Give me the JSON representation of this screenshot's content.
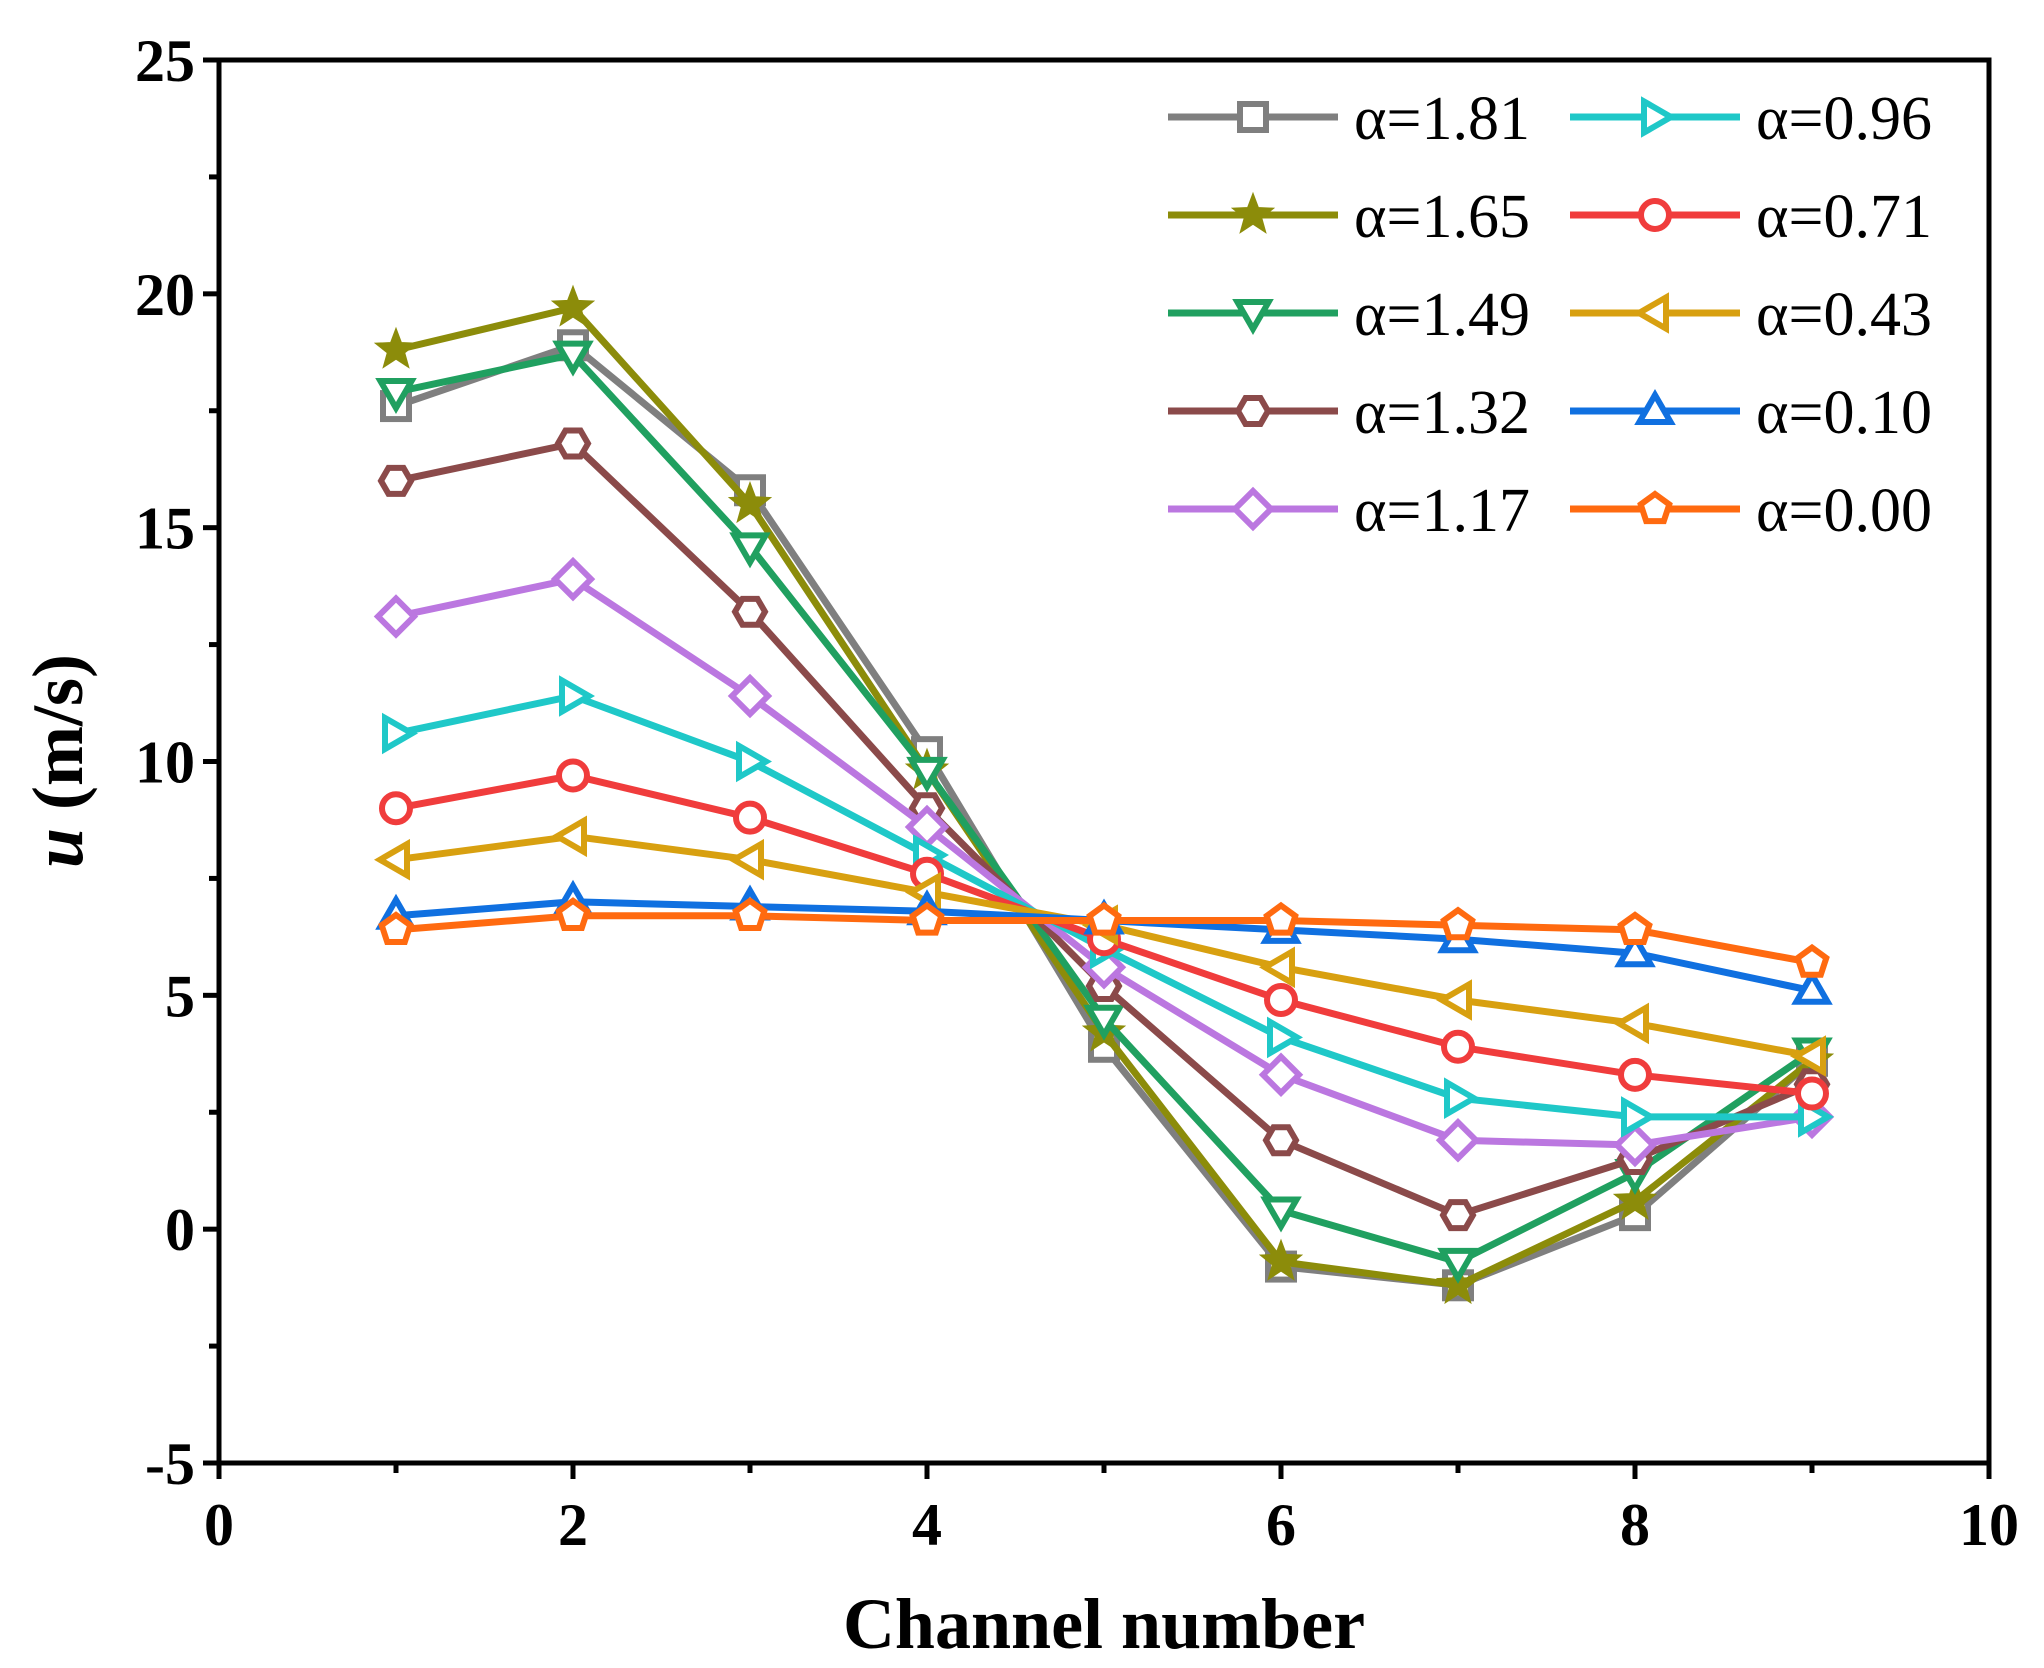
{
  "chart_data": {
    "type": "line",
    "title": "",
    "xlabel": "Channel number",
    "ylabel_symbol": "u",
    "ylabel_unit": "(m/s)",
    "xlim": [
      0,
      10
    ],
    "ylim": [
      -5,
      25
    ],
    "xticks": [
      0,
      2,
      4,
      6,
      8,
      10
    ],
    "yticks": [
      -5,
      0,
      5,
      10,
      15,
      20,
      25
    ],
    "grid": false,
    "legend_position": "top-right",
    "x": [
      1,
      2,
      3,
      4,
      5,
      6,
      7,
      8,
      9
    ],
    "series": [
      {
        "name": "α=1.81",
        "color": "#7f7f7f",
        "marker": "square",
        "values": [
          17.6,
          18.9,
          15.8,
          10.2,
          3.9,
          -0.8,
          -1.2,
          0.3,
          3.6
        ]
      },
      {
        "name": "α=1.65",
        "color": "#8c8c0a",
        "marker": "star",
        "values": [
          18.8,
          19.7,
          15.5,
          9.8,
          4.2,
          -0.7,
          -1.2,
          0.6,
          3.6
        ]
      },
      {
        "name": "α=1.49",
        "color": "#20a060",
        "marker": "triangle-down",
        "values": [
          17.9,
          18.7,
          14.6,
          9.8,
          4.5,
          0.4,
          -0.7,
          1.2,
          3.8
        ]
      },
      {
        "name": "α=1.32",
        "color": "#8b4a4a",
        "marker": "hexagon",
        "values": [
          16.0,
          16.8,
          13.2,
          9.0,
          5.2,
          1.9,
          0.3,
          1.5,
          3.1
        ]
      },
      {
        "name": "α=1.17",
        "color": "#bb77e0",
        "marker": "diamond",
        "values": [
          13.1,
          13.9,
          11.4,
          8.6,
          5.6,
          3.3,
          1.9,
          1.8,
          2.4
        ]
      },
      {
        "name": "α=0.96",
        "color": "#1fc8c8",
        "marker": "triangle-right",
        "values": [
          10.6,
          11.4,
          10.0,
          8.0,
          6.0,
          4.1,
          2.8,
          2.4,
          2.4
        ]
      },
      {
        "name": "α=0.71",
        "color": "#f03c3c",
        "marker": "circle",
        "values": [
          9.0,
          9.7,
          8.8,
          7.6,
          6.2,
          4.9,
          3.9,
          3.3,
          2.9
        ]
      },
      {
        "name": "α=0.43",
        "color": "#d8a010",
        "marker": "triangle-left",
        "values": [
          7.9,
          8.4,
          7.9,
          7.2,
          6.5,
          5.6,
          4.9,
          4.4,
          3.7
        ]
      },
      {
        "name": "α=0.10",
        "color": "#1070e0",
        "marker": "triangle-up",
        "values": [
          6.7,
          7.0,
          6.9,
          6.8,
          6.6,
          6.4,
          6.2,
          5.9,
          5.1
        ]
      },
      {
        "name": "α=0.00",
        "color": "#ff6a10",
        "marker": "pentagon",
        "values": [
          6.4,
          6.7,
          6.7,
          6.6,
          6.6,
          6.6,
          6.5,
          6.4,
          5.7
        ]
      }
    ]
  }
}
